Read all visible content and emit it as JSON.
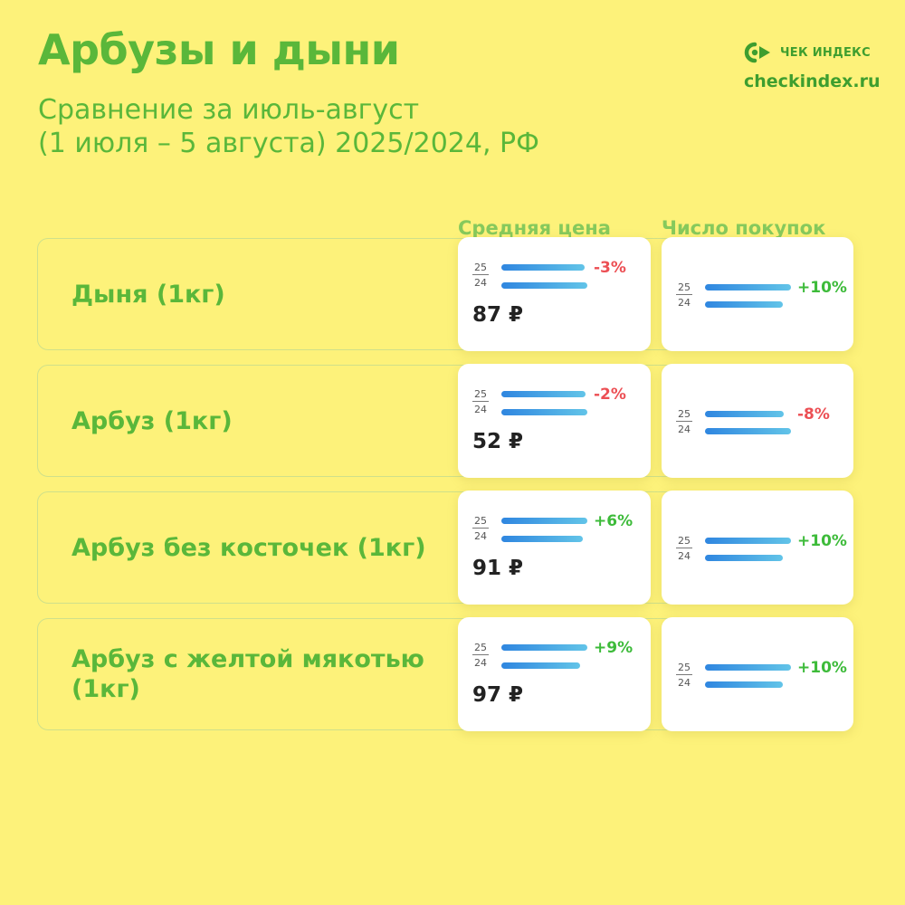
{
  "header": {
    "title": "Арбузы и дыни",
    "subtitle_line1": "Сравнение за июль-август",
    "subtitle_line2": "(1 июля – 5 августа) 2025/2024, РФ"
  },
  "brand": {
    "logo_icon": "cheque-index-logo-icon",
    "logo_text": "ЧЕК ИНДЕКС",
    "site": "checkindex.ru"
  },
  "colors": {
    "background": "#fdf27a",
    "accent_green": "#5ab73a",
    "positive": "#3dbb3a",
    "negative": "#ec4f54",
    "bar_from": "#2f86e0",
    "bar_to": "#62c4e8"
  },
  "chart_data": {
    "type": "bar",
    "year_labels": [
      "25",
      "24"
    ],
    "currency": "₽",
    "columns": [
      "Средняя цена",
      "Число покупок"
    ],
    "rows": [
      {
        "label": "Дыня (1кг)",
        "price": "87 ₽",
        "price_change": "-3%",
        "price_change_value": -3,
        "purchases_change": "+10%",
        "purchases_change_value": 10
      },
      {
        "label": "Арбуз (1кг)",
        "price": "52 ₽",
        "price_change": "-2%",
        "price_change_value": -2,
        "purchases_change": "-8%",
        "purchases_change_value": -8
      },
      {
        "label": "Арбуз без косточек (1кг)",
        "price": "91 ₽",
        "price_change": "+6%",
        "price_change_value": 6,
        "purchases_change": "+10%",
        "purchases_change_value": 10
      },
      {
        "label": "Арбуз с желтой мякотью (1кг)",
        "price": "97 ₽",
        "price_change": "+9%",
        "price_change_value": 9,
        "purchases_change": "+10%",
        "purchases_change_value": 10
      }
    ]
  }
}
